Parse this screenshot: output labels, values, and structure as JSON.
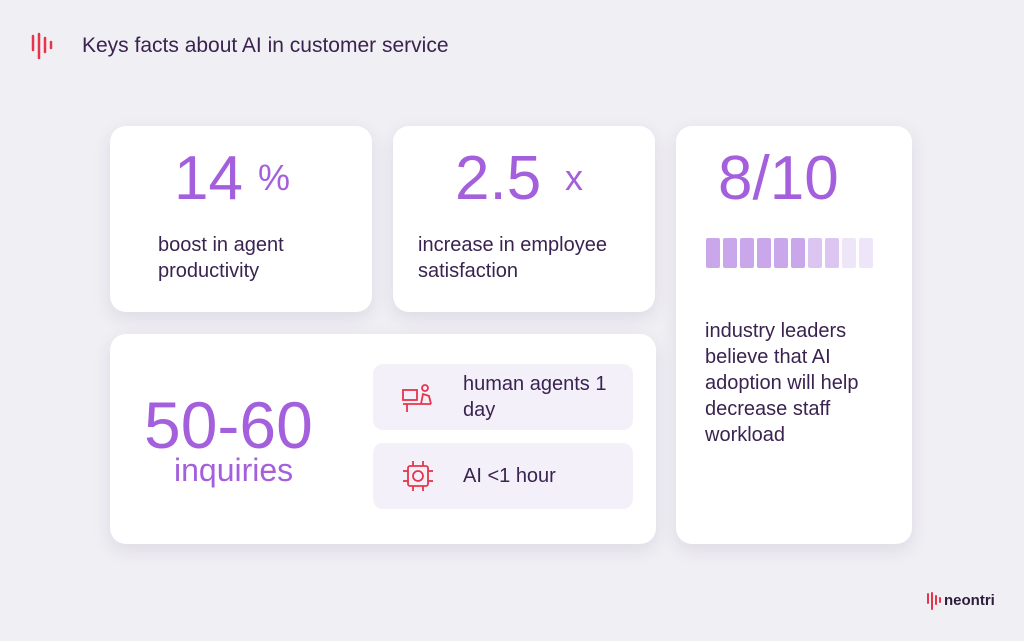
{
  "header": {
    "title": "Keys facts about AI in customer service"
  },
  "cards": [
    {
      "number": "14",
      "unit": "%",
      "text": "boost in agent productivity"
    },
    {
      "number": "2.5",
      "unit": "x",
      "text": "increase in employee satisfaction"
    },
    {
      "number": "8/10",
      "text": "industry leaders believe that AI adoption will help decrease staff workload"
    }
  ],
  "inquiries": {
    "number": "50-60",
    "label": "inquiries",
    "rows": [
      {
        "text": "human agents 1 day"
      },
      {
        "text": "AI <1 hour"
      }
    ]
  },
  "logo": "neontri"
}
